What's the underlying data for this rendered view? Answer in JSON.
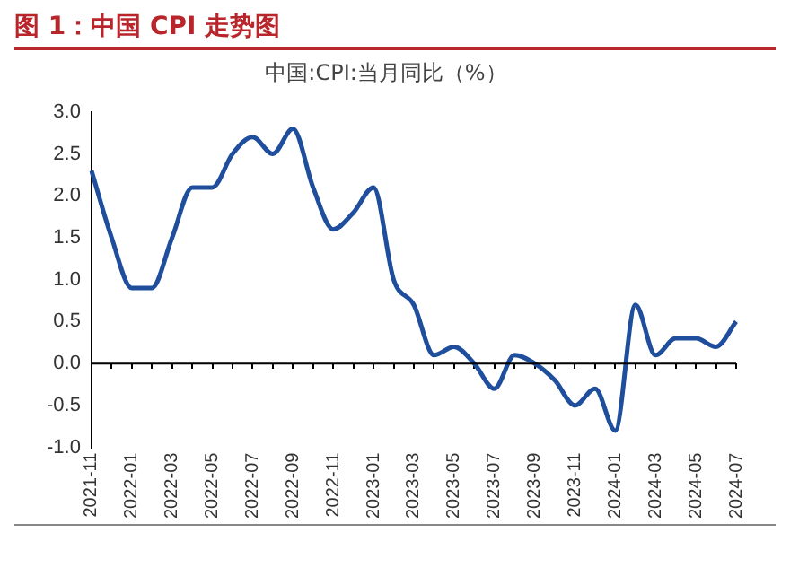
{
  "chart_data": {
    "type": "line",
    "title": "图 1：中国 CPI 走势图",
    "subtitle": "中国:CPI:当月同比（%）",
    "categories": [
      "2021-11",
      null,
      "2022-01",
      null,
      "2022-03",
      null,
      "2022-05",
      null,
      "2022-07",
      null,
      "2022-09",
      null,
      "2022-11",
      null,
      "2023-01",
      null,
      "2023-03",
      null,
      "2023-05",
      null,
      "2023-07",
      null,
      "2023-09",
      null,
      "2023-11",
      null,
      "2024-01",
      null,
      "2024-03",
      null,
      "2024-05",
      null,
      "2024-07"
    ],
    "series": [
      {
        "color": "#1f4e9c",
        "values": [
          2.3,
          1.5,
          0.9,
          0.9,
          1.5,
          2.1,
          2.1,
          2.5,
          2.7,
          2.5,
          2.8,
          2.1,
          1.6,
          1.8,
          2.1,
          1.0,
          0.7,
          0.1,
          0.2,
          0.0,
          -0.3,
          0.1,
          0.0,
          -0.2,
          -0.5,
          -0.3,
          -0.8,
          0.7,
          0.1,
          0.3,
          0.3,
          0.2,
          0.5
        ]
      }
    ],
    "ylim": [
      -1,
      3
    ],
    "yticks": [
      {
        "value": -1,
        "label": "-1.0"
      },
      {
        "value": -0.5,
        "label": "-0.5"
      },
      {
        "value": 0,
        "label": "0.0"
      },
      {
        "value": 0.5,
        "label": "0.5"
      },
      {
        "value": 1,
        "label": "1.0"
      },
      {
        "value": 1.5,
        "label": "1.5"
      },
      {
        "value": 2,
        "label": "2.0"
      },
      {
        "value": 2.5,
        "label": "2.5"
      },
      {
        "value": 3,
        "label": "3.0"
      }
    ],
    "ref_lines": [
      {
        "axis": "y",
        "value": 0,
        "color": "#000000"
      }
    ],
    "grid": false,
    "legend": false,
    "marker": "none",
    "line_style": "solid"
  }
}
